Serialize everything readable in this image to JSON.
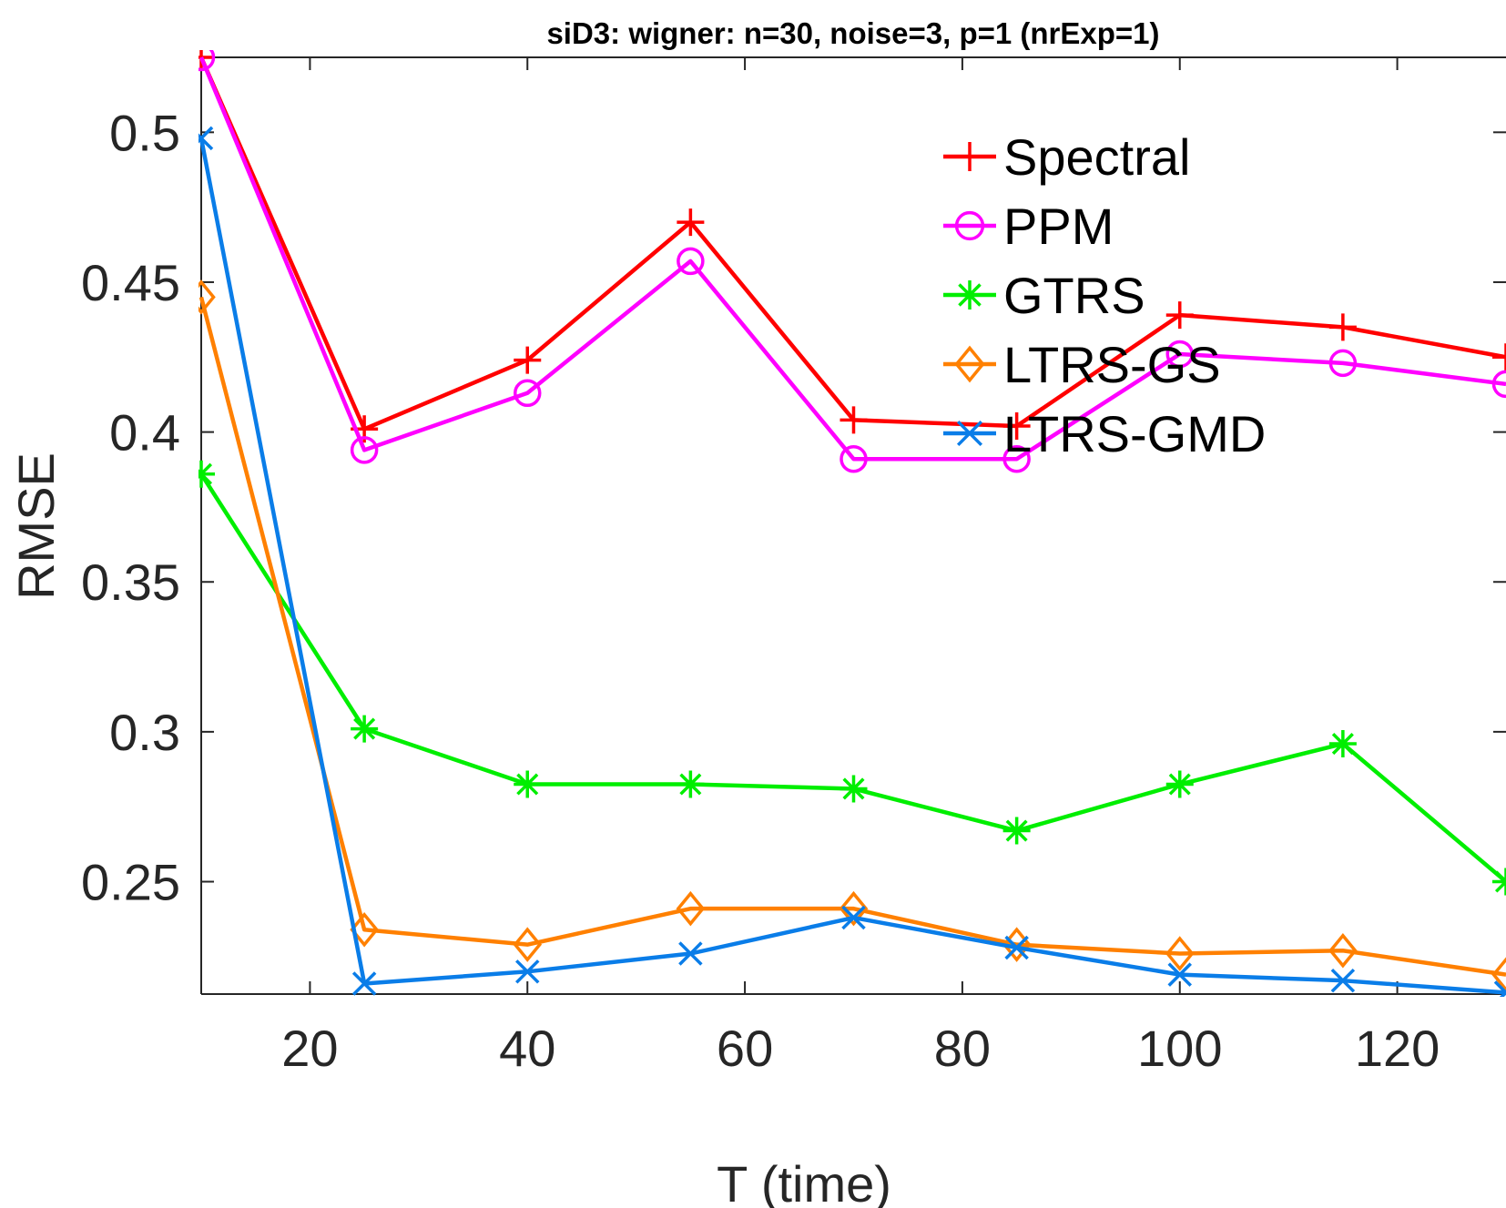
{
  "chart_data": {
    "type": "line",
    "title": "siD3: wigner: n=30, noise=3, p=1 (nrExp=1)",
    "xlabel": "T (time)",
    "ylabel": "RMSE",
    "xlim": [
      10,
      130
    ],
    "ylim": [
      0.2125,
      0.525
    ],
    "xticks": [
      20,
      40,
      60,
      80,
      100,
      120
    ],
    "yticks": [
      0.25,
      0.3,
      0.35,
      0.4,
      0.45,
      0.5
    ],
    "ytick_labels": [
      "0.25",
      "0.3",
      "0.35",
      "0.4",
      "0.45",
      "0.5"
    ],
    "grid": false,
    "legend": "top-right",
    "x": [
      10,
      25,
      40,
      55,
      70,
      85,
      100,
      115,
      130
    ],
    "series": [
      {
        "name": "Spectral",
        "color": "#ff0000",
        "marker": "plus",
        "values": [
          0.525,
          0.401,
          0.424,
          0.47,
          0.404,
          0.402,
          0.439,
          0.435,
          0.425
        ]
      },
      {
        "name": "PPM",
        "color": "#ff00ff",
        "marker": "circle",
        "values": [
          0.525,
          0.394,
          0.413,
          0.457,
          0.391,
          0.391,
          0.426,
          0.423,
          0.416
        ]
      },
      {
        "name": "GTRS",
        "color": "#00ee00",
        "marker": "asterisk",
        "values": [
          0.386,
          0.301,
          0.2825,
          0.2825,
          0.281,
          0.267,
          0.2825,
          0.296,
          0.25
        ]
      },
      {
        "name": "LTRS-GS",
        "color": "#ff8000",
        "marker": "diamond",
        "values": [
          0.445,
          0.234,
          0.229,
          0.241,
          0.241,
          0.229,
          0.226,
          0.227,
          0.219
        ]
      },
      {
        "name": "LTRS-GMD",
        "color": "#0a7de8",
        "marker": "cross",
        "values": [
          0.498,
          0.216,
          0.22,
          0.226,
          0.238,
          0.228,
          0.219,
          0.217,
          0.213
        ]
      }
    ]
  }
}
